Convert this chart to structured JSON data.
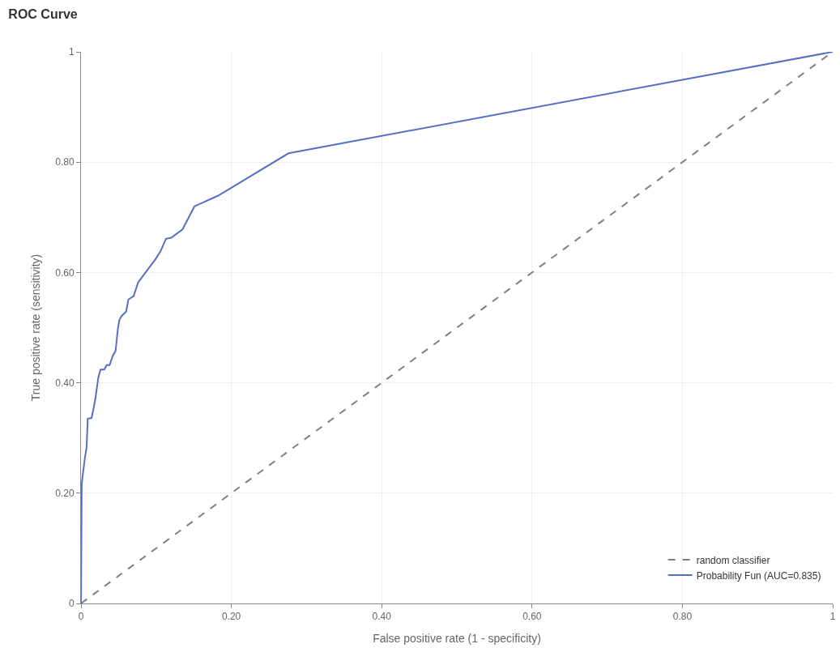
{
  "chart_data": {
    "type": "line",
    "title": "ROC Curve",
    "xlabel": "False positive rate (1 - specificity)",
    "ylabel": "True positive rate (sensitivity)",
    "xlim": [
      0,
      1
    ],
    "ylim": [
      0,
      1
    ],
    "xticks": [
      0,
      {
        "value": 0.2,
        "label": "0.20"
      },
      {
        "value": 0.4,
        "label": "0.40"
      },
      {
        "value": 0.6,
        "label": "0.60"
      },
      {
        "value": 0.8,
        "label": "0.80"
      },
      1
    ],
    "yticks": [
      0,
      {
        "value": 0.2,
        "label": "0.20"
      },
      {
        "value": 0.4,
        "label": "0.40"
      },
      {
        "value": 0.6,
        "label": "0.60"
      },
      {
        "value": 0.8,
        "label": "0.80"
      },
      1
    ],
    "grid": true,
    "legend": "bottom right",
    "marker": "none",
    "series": [
      {
        "name": "random classifier",
        "color": "#808080",
        "line_style": "dashed",
        "x": [
          0,
          1
        ],
        "values": [
          0,
          1
        ]
      },
      {
        "name": "Probability Fun (AUC=0.835)",
        "color": "#5470c6",
        "line_style": "solid",
        "x": [
          0,
          0.001,
          0.005,
          0.0075,
          0.009,
          0.014,
          0.0165,
          0.019,
          0.023,
          0.026,
          0.031,
          0.034,
          0.038,
          0.042,
          0.046,
          0.049,
          0.051,
          0.054,
          0.06,
          0.063,
          0.07,
          0.076,
          0.083,
          0.099,
          0.106,
          0.113,
          0.12,
          0.135,
          0.151,
          0.182,
          0.276,
          1
        ],
        "values": [
          0,
          0.218,
          0.262,
          0.284,
          0.335,
          0.336,
          0.352,
          0.37,
          0.409,
          0.424,
          0.424,
          0.432,
          0.432,
          0.448,
          0.458,
          0.497,
          0.514,
          0.521,
          0.529,
          0.551,
          0.557,
          0.582,
          0.595,
          0.624,
          0.639,
          0.661,
          0.663,
          0.678,
          0.72,
          0.739,
          0.816,
          1
        ]
      }
    ]
  }
}
